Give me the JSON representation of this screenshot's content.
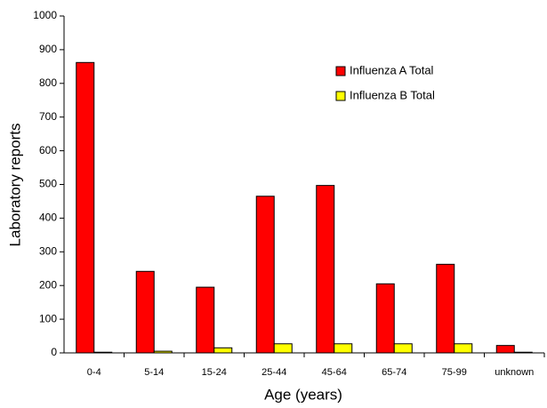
{
  "chart_data": {
    "type": "bar",
    "categories": [
      "0-4",
      "5-14",
      "15-24",
      "25-44",
      "45-64",
      "65-74",
      "75-99",
      "unknown"
    ],
    "series": [
      {
        "name": "Influenza A Total",
        "color": "#ff0000",
        "values": [
          862,
          242,
          195,
          465,
          497,
          205,
          263,
          22
        ]
      },
      {
        "name": "Influenza B Total",
        "color": "#ffff00",
        "values": [
          2,
          5,
          15,
          27,
          27,
          27,
          27,
          2
        ]
      }
    ],
    "x_label": "Age (years)",
    "y_label": "Laboratory reports",
    "ylim": [
      0,
      1000
    ],
    "yticks": [
      0,
      100,
      200,
      300,
      400,
      500,
      600,
      700,
      800,
      900,
      1000
    ],
    "legend": "upper right"
  }
}
